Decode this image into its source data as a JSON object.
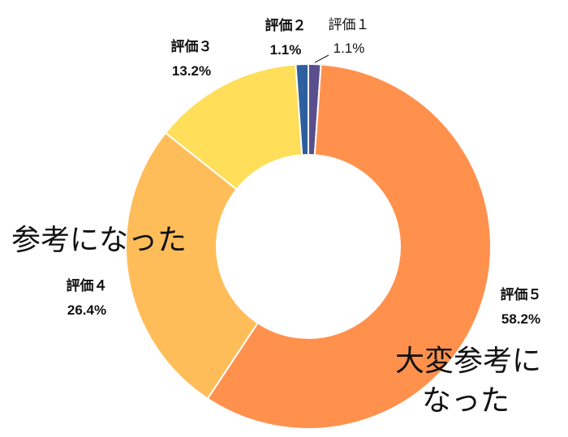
{
  "chart_data": {
    "type": "pie",
    "style": "donut",
    "slices": [
      {
        "label": "評価１",
        "value": 1.1,
        "display": "1.1%",
        "color": "#5B4E8C"
      },
      {
        "label": "評価５",
        "value": 58.2,
        "display": "58.2%",
        "color": "#FF914D"
      },
      {
        "label": "評価４",
        "value": 26.4,
        "display": "26.4%",
        "color": "#FFBD59"
      },
      {
        "label": "評価３",
        "value": 13.2,
        "display": "13.2%",
        "color": "#FFDE59"
      },
      {
        "label": "評価２",
        "value": 1.1,
        "display": "1.1%",
        "color": "#2E5F9E"
      }
    ],
    "annotations": [
      {
        "lines": [
          "参考になった"
        ]
      },
      {
        "lines": [
          "大変参考に",
          "なった"
        ]
      }
    ]
  }
}
